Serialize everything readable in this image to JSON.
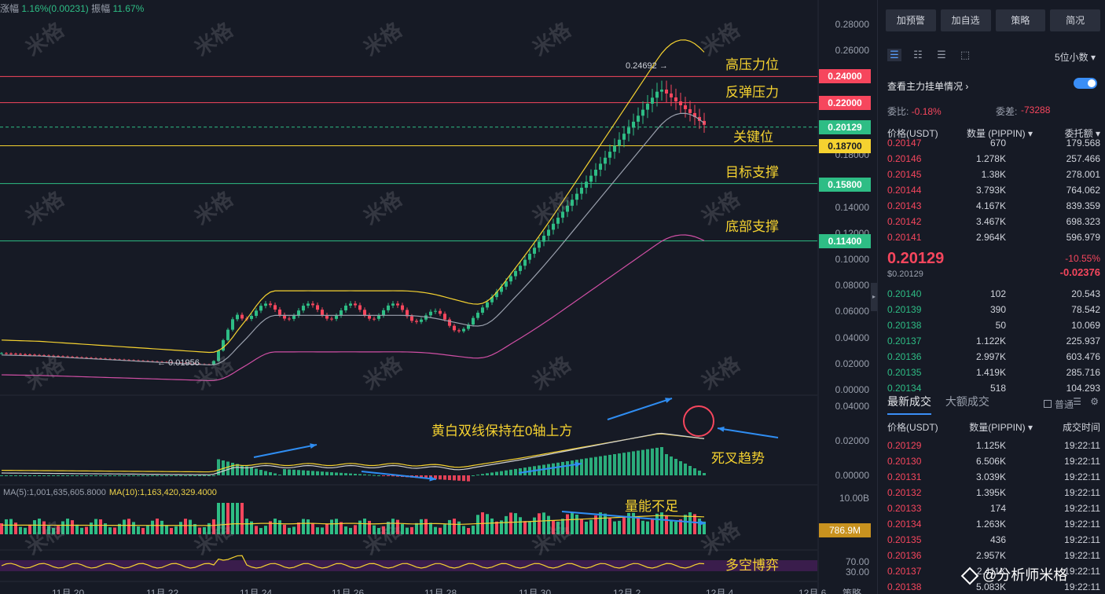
{
  "header": {
    "change_label": "涨幅",
    "change_value": "1.16%(0.00231)",
    "amp_label": "振幅",
    "amp_value": "11.67%"
  },
  "ma_header": {
    "ma5": "MA(5):1,001,635,605.8000",
    "ma10": "MA(10):1,163,420,329.4000"
  },
  "annotations": {
    "high_resist": "高压力位",
    "rebound_resist": "反弹压力",
    "key_level": "关键位",
    "target_support": "目标支撑",
    "bottom_support": "底部支撑",
    "macd_note": "黄白双线保持在0轴上方",
    "death_cross": "死叉趋势",
    "volume_note": "量能不足",
    "bull_bear": "多空博弈",
    "high_marker": "0.24692 →",
    "low_marker": "← 0.01956"
  },
  "price_lines": [
    {
      "label": "0.24000",
      "color": "#f6465d",
      "value": 0.24
    },
    {
      "label": "0.22000",
      "color": "#f6465d",
      "value": 0.22
    },
    {
      "label": "0.20129",
      "color": "#2ebd85",
      "value": 0.20129
    },
    {
      "label": "0.18700",
      "color": "#f5d230",
      "value": 0.187
    },
    {
      "label": "0.15800",
      "color": "#2ebd85",
      "value": 0.158
    },
    {
      "label": "0.11400",
      "color": "#2ebd85",
      "value": 0.114
    }
  ],
  "price_axis": [
    "0.28000",
    "0.26000",
    "0.18000",
    "0.14000",
    "0.12000",
    "0.10000",
    "0.08000",
    "0.06000",
    "0.04000",
    "0.02000",
    "0.00000"
  ],
  "macd_axis": [
    "0.04000",
    "0.02000",
    "0.00000"
  ],
  "volume_axis": {
    "top": "10.00B",
    "current": "786.9M"
  },
  "rsi_axis": [
    "70.00",
    "30.00"
  ],
  "x_axis": [
    "11月 20",
    "11月 22",
    "11月 24",
    "11月 26",
    "11月 28",
    "11月 30",
    "12月 2",
    "12月 4",
    "12月 6"
  ],
  "x_axis_right": "策略",
  "watermark": "米格",
  "panel": {
    "buttons": [
      "加预警",
      "加自选",
      "策略",
      "简况"
    ],
    "digits": "5位小数 ▾",
    "order_toggle_label": "查看主力挂单情况 ›",
    "commission_ratio_label": "委比:",
    "commission_ratio": "-0.18%",
    "commission_diff_label": "委差:",
    "commission_diff": "-73288",
    "book_headers": [
      "价格(USDT)",
      "数量 (PIPPIN) ▾",
      "委托额 ▾"
    ],
    "asks": [
      [
        "0.20147",
        "670",
        "179.568"
      ],
      [
        "0.20146",
        "1.278K",
        "257.466"
      ],
      [
        "0.20145",
        "1.38K",
        "278.001"
      ],
      [
        "0.20144",
        "3.793K",
        "764.062"
      ],
      [
        "0.20143",
        "4.167K",
        "839.359"
      ],
      [
        "0.20142",
        "3.467K",
        "698.323"
      ],
      [
        "0.20141",
        "2.964K",
        "596.979"
      ]
    ],
    "last_price": "0.20129",
    "last_price_usd": "$0.20129",
    "change_pct": "-10.55%",
    "change_abs": "-0.02376",
    "bids": [
      [
        "0.20140",
        "102",
        "20.543"
      ],
      [
        "0.20139",
        "390",
        "78.542"
      ],
      [
        "0.20138",
        "50",
        "10.069"
      ],
      [
        "0.20137",
        "1.122K",
        "225.937"
      ],
      [
        "0.20136",
        "2.997K",
        "603.476"
      ],
      [
        "0.20135",
        "1.419K",
        "285.716"
      ],
      [
        "0.20134",
        "518",
        "104.293"
      ]
    ],
    "trades_tab": "最新成交",
    "big_trades_tab": "大额成交",
    "normal_label": "普通",
    "trade_headers": [
      "价格(USDT)",
      "数量(PIPPIN) ▾",
      "成交时间"
    ],
    "trades": [
      [
        "0.20129",
        "1.125K",
        "19:22:11"
      ],
      [
        "0.20130",
        "6.506K",
        "19:22:11"
      ],
      [
        "0.20131",
        "3.039K",
        "19:22:11"
      ],
      [
        "0.20132",
        "1.395K",
        "19:22:11"
      ],
      [
        "0.20133",
        "174",
        "19:22:11"
      ],
      [
        "0.20134",
        "1.263K",
        "19:22:11"
      ],
      [
        "0.20135",
        "436",
        "19:22:11"
      ],
      [
        "0.20136",
        "2.957K",
        "19:22:11"
      ],
      [
        "0.20137",
        "2.411K",
        "19:22:11"
      ],
      [
        "0.20138",
        "5.083K",
        "19:22:11"
      ]
    ],
    "brand": "@分析师米格"
  }
}
